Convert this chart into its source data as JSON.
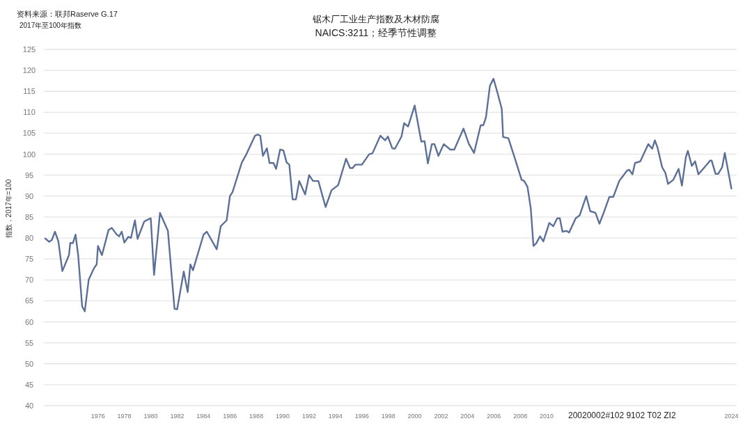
{
  "chart_data": {
    "type": "line",
    "title": "锯木厂工业生产指数及木材防腐",
    "subtitle": "NAICS:3211；经季节性调整",
    "ylabel": "指数，2017年=100",
    "annotations": [
      "资料来源：联邦Raserve G.17",
      "2017年至100年指数",
      "20020002#102 9102 T02 ZI2"
    ],
    "xlim": [
      1971.9,
      2024.4
    ],
    "ylim": [
      40,
      125
    ],
    "xticks": [
      1976,
      1978,
      1980,
      1982,
      1984,
      1986,
      1988,
      1990,
      1992,
      1994,
      1996,
      1998,
      2000,
      2002,
      2004,
      2006,
      2008,
      2010,
      2024
    ],
    "yticks": [
      40,
      45,
      50,
      55,
      60,
      65,
      70,
      75,
      80,
      85,
      90,
      95,
      100,
      105,
      110,
      115,
      120,
      125
    ],
    "grid": "y",
    "x": [
      1972.0,
      1972.3,
      1972.5,
      1972.74,
      1973.0,
      1973.3,
      1973.8,
      1973.9,
      1974.1,
      1974.3,
      1974.5,
      1974.8,
      1975.0,
      1975.3,
      1975.7,
      1975.9,
      1976.0,
      1976.3,
      1976.8,
      1977.05,
      1977.4,
      1977.6,
      1977.8,
      1978.0,
      1978.3,
      1978.5,
      1978.8,
      1979.0,
      1979.5,
      1979.9,
      1980.0,
      1980.25,
      1980.7,
      1981.3,
      1981.8,
      1982.0,
      1982.5,
      1982.8,
      1983.0,
      1983.2,
      1984.0,
      1984.25,
      1985.0,
      1985.3,
      1985.75,
      1986.0,
      1986.2,
      1986.9,
      1987.2,
      1987.9,
      1988.1,
      1988.3,
      1988.5,
      1988.8,
      1989.0,
      1989.3,
      1989.5,
      1989.8,
      1990.05,
      1990.3,
      1990.5,
      1990.75,
      1991.0,
      1991.25,
      1991.7,
      1992.0,
      1992.3,
      1992.7,
      1993.25,
      1993.7,
      1994.2,
      1994.8,
      1995.1,
      1995.3,
      1995.5,
      1996.0,
      1996.55,
      1996.8,
      1997.4,
      1997.76,
      1997.97,
      1998.3,
      1998.5,
      1999.0,
      1999.2,
      1999.5,
      2000.0,
      2000.5,
      2000.75,
      2001.0,
      2001.3,
      2001.5,
      2001.8,
      2002.2,
      2002.7,
      2003.0,
      2003.7,
      2004.1,
      2004.5,
      2005.0,
      2005.2,
      2005.4,
      2005.7,
      2005.97,
      2006.2,
      2006.6,
      2006.7,
      2007.1,
      2007.6,
      2008.1,
      2008.3,
      2008.55,
      2008.8,
      2009.0,
      2009.2,
      2009.5,
      2009.75,
      2010.2,
      2010.5,
      2010.8,
      2011.0,
      2011.2,
      2011.5,
      2011.7,
      2012.2,
      2012.5,
      2013.0,
      2013.3,
      2013.7,
      2014.0,
      2014.4,
      2014.75,
      2015.05,
      2015.5,
      2016.1,
      2016.25,
      2016.5,
      2016.7,
      2017.1,
      2017.7,
      2018.0,
      2018.2,
      2018.4,
      2018.75,
      2019.0,
      2019.2,
      2019.6,
      2020.0,
      2020.25,
      2020.55,
      2020.7,
      2021.0,
      2021.25,
      2021.5,
      2022.05,
      2022.4,
      2022.5,
      2022.8,
      2023.0,
      2023.3,
      2023.5,
      2024.0
    ],
    "series": [
      {
        "color": "#5b6f97",
        "values": [
          79.9,
          79.1,
          79.5,
          81.5,
          79.2,
          72.1,
          75.9,
          78.8,
          78.8,
          80.8,
          75.9,
          63.7,
          62.5,
          70.1,
          72.8,
          73.7,
          78.1,
          75.9,
          81.9,
          82.4,
          80.9,
          80.4,
          81.5,
          78.9,
          80.3,
          80.0,
          84.2,
          79.8,
          83.9,
          84.6,
          84.7,
          71.2,
          86.0,
          81.7,
          63.1,
          63.0,
          72.0,
          67.1,
          73.7,
          72.3,
          80.8,
          81.5,
          77.3,
          82.8,
          84.2,
          90.0,
          91.0,
          98.0,
          99.7,
          104.4,
          104.7,
          104.4,
          99.6,
          101.4,
          97.9,
          97.9,
          96.5,
          101.1,
          100.9,
          98.0,
          97.5,
          89.2,
          89.2,
          93.6,
          90.4,
          95.0,
          93.6,
          93.6,
          87.4,
          91.4,
          92.6,
          98.9,
          96.7,
          96.7,
          97.5,
          97.5,
          100.0,
          100.2,
          104.4,
          103.3,
          104.2,
          101.4,
          101.3,
          104.2,
          107.4,
          106.6,
          111.6,
          103.0,
          103.1,
          97.8,
          102.4,
          102.4,
          99.6,
          102.4,
          101.1,
          101.1,
          106.1,
          102.5,
          100.3,
          106.9,
          106.9,
          108.8,
          116.3,
          118.0,
          115.5,
          110.8,
          104.1,
          103.8,
          98.9,
          93.9,
          93.6,
          92.2,
          87.0,
          78.1,
          78.7,
          80.4,
          79.2,
          83.6,
          82.8,
          84.7,
          84.7,
          81.5,
          81.7,
          81.3,
          84.7,
          85.4,
          90.0,
          86.4,
          86.0,
          83.4,
          86.7,
          89.8,
          89.8,
          93.6,
          96.1,
          96.3,
          95.2,
          97.9,
          98.3,
          102.4,
          101.3,
          103.3,
          101.6,
          96.9,
          95.5,
          92.9,
          93.9,
          96.5,
          92.5,
          99.3,
          100.8,
          97.2,
          98.3,
          95.2,
          97.2,
          98.5,
          98.5,
          95.3,
          95.3,
          96.9,
          100.3,
          91.8
        ]
      }
    ]
  }
}
